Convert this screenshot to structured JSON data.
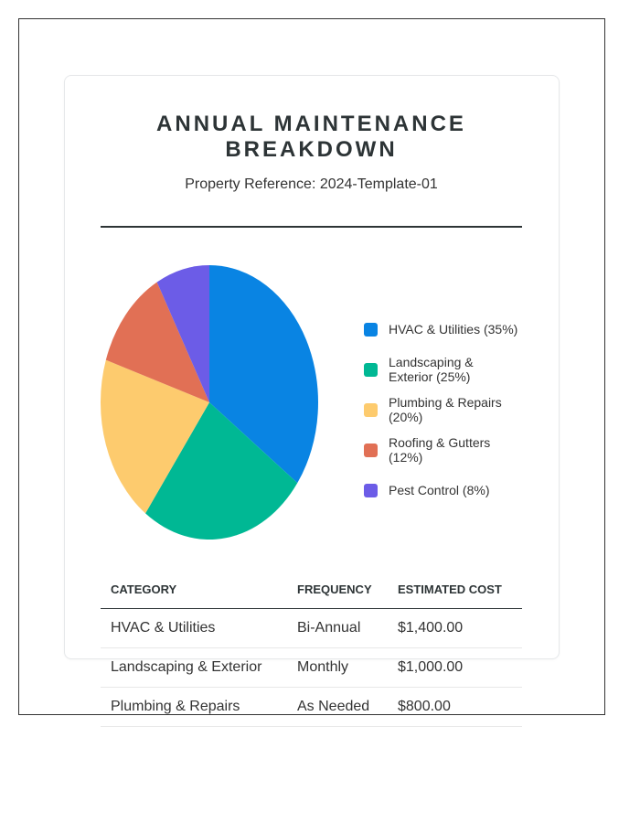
{
  "header": {
    "title": "ANNUAL MAINTENANCE BREAKDOWN",
    "subtitle": "Property Reference: 2024-Template-01"
  },
  "chart_data": {
    "type": "pie",
    "categories": [
      "HVAC & Utilities",
      "Landscaping & Exterior",
      "Plumbing & Repairs",
      "Roofing & Gutters",
      "Pest Control"
    ],
    "values": [
      35,
      25,
      20,
      12,
      8
    ],
    "colors": [
      "#0984e3",
      "#00b894",
      "#fdcb6e",
      "#e17055",
      "#6c5ce7"
    ],
    "legend_labels": [
      "HVAC & Utilities (35%)",
      "Landscaping & Exterior (25%)",
      "Plumbing & Repairs (20%)",
      "Roofing & Gutters (12%)",
      "Pest Control (8%)"
    ],
    "legend_position": "right"
  },
  "table": {
    "headers": [
      "CATEGORY",
      "FREQUENCY",
      "ESTIMATED COST"
    ],
    "rows": [
      [
        "HVAC & Utilities",
        "Bi-Annual",
        "$1,400.00"
      ],
      [
        "Landscaping & Exterior",
        "Monthly",
        "$1,000.00"
      ],
      [
        "Plumbing & Repairs",
        "As Needed",
        "$800.00"
      ]
    ]
  }
}
